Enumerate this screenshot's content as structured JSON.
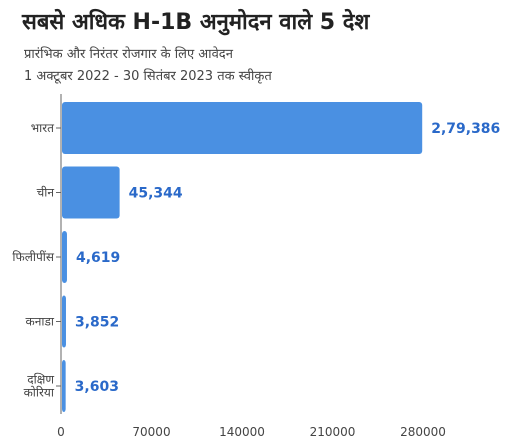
{
  "chart_data": {
    "type": "bar",
    "orientation": "horizontal",
    "title": "सबसे अधिक H-1B अनुमोदन वाले 5 देश",
    "subtitle_lines": [
      "प्रारंभिक और निरंतर रोजगार के लिए आवेदन",
      "1 अक्टूबर 2022 - 30 सितंबर 2023 तक स्वीकृत"
    ],
    "categories": [
      [
        "भारत"
      ],
      [
        "चीन"
      ],
      [
        "फिलीपींस"
      ],
      [
        "कनाडा"
      ],
      [
        "दक्षिण",
        "कोरिया"
      ]
    ],
    "values": [
      279386,
      45344,
      4619,
      3852,
      3603
    ],
    "value_labels": [
      "2,79,386",
      "45,344",
      "4,619",
      "3,852",
      "3,603"
    ],
    "xlim": [
      0,
      280000
    ],
    "x_ticks": [
      0,
      70000,
      140000,
      210000,
      280000
    ],
    "x_tick_labels": [
      "0",
      "70000",
      "140000",
      "210000",
      "280000"
    ],
    "xlabel": "",
    "ylabel": "",
    "grid": false,
    "bar_color": "#4a90e2",
    "label_color": "#2a69c9",
    "axis_color": "#666666"
  }
}
